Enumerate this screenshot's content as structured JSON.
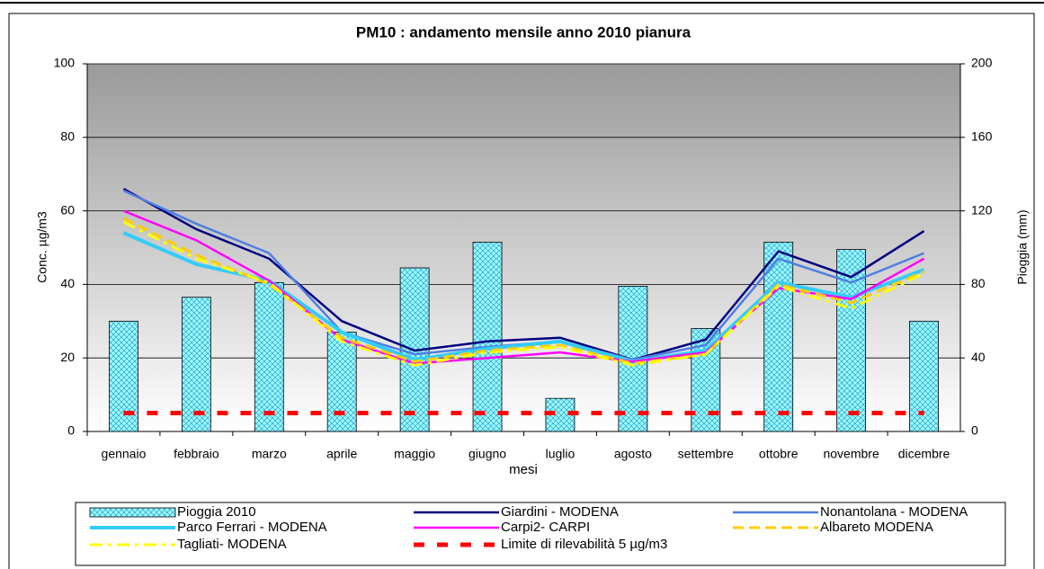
{
  "chart_data": {
    "type": "combo",
    "title": "PM10 : andamento mensile anno 2010 pianura",
    "y_label": "Conc. µg/m3",
    "y2_label": "Pioggia (mm)",
    "x_label": "mesi",
    "categories": [
      "gennaio",
      "febbraio",
      "marzo",
      "aprile",
      "maggio",
      "giugno",
      "luglio",
      "agosto",
      "settembre",
      "ottobre",
      "novembre",
      "dicembre"
    ],
    "ylim": [
      0,
      100
    ],
    "yticks": [
      0,
      20,
      40,
      60,
      80,
      100
    ],
    "y2lim": [
      0,
      200
    ],
    "y2ticks": [
      0,
      40,
      80,
      120,
      160,
      200
    ],
    "grid": true,
    "series": [
      {
        "name": "Pioggia 2010",
        "type": "bar",
        "axis": "y2",
        "color": "#99ffff",
        "values": [
          60,
          73,
          81,
          54,
          89,
          103,
          18,
          79,
          56,
          103,
          99,
          60
        ]
      },
      {
        "name": "Giardini  - MODENA",
        "type": "line",
        "line_style": "solid",
        "color": "#000080",
        "values": [
          66,
          55,
          47,
          30,
          22,
          24.5,
          25.5,
          19.5,
          25,
          49,
          42,
          54.5
        ]
      },
      {
        "name": "Nonantolana - MODENA",
        "type": "line",
        "line_style": "solid",
        "color": "#4f7fe0",
        "values": [
          65.5,
          56.5,
          48.5,
          27,
          21,
          23,
          24.5,
          19.5,
          23.5,
          47,
          40.5,
          48.5
        ]
      },
      {
        "name": "Parco Ferrari - MODENA",
        "type": "line",
        "line_style": "thick",
        "color": "#33ccff",
        "values": [
          54,
          45.5,
          41,
          27,
          19.5,
          22.5,
          24.5,
          19,
          22,
          40.5,
          36.5,
          44
        ]
      },
      {
        "name": "Carpi2- CARPI",
        "type": "line",
        "line_style": "solid",
        "color": "#ff00ff",
        "values": [
          60,
          52,
          41,
          25,
          18.5,
          20,
          21.5,
          19,
          21.5,
          39,
          36,
          47
        ]
      },
      {
        "name": "Albareto MODENA",
        "type": "line",
        "line_style": "dashed",
        "color": "#ffcc00",
        "values": [
          58,
          48,
          40,
          25.5,
          19,
          22,
          23.5,
          18.5,
          21,
          40,
          35,
          43.5
        ]
      },
      {
        "name": "Tagliati- MODENA",
        "type": "line",
        "line_style": "dashdot",
        "color": "#ffff00",
        "values": [
          57,
          47,
          40.5,
          24.5,
          18,
          21.5,
          23,
          18,
          21,
          39.5,
          33.5,
          43
        ]
      },
      {
        "name": "Limite di rilevabilità 5 µg/m3",
        "type": "line",
        "line_style": "bigdash",
        "color": "#ff0000",
        "values": [
          5,
          5,
          5,
          5,
          5,
          5,
          5,
          5,
          5,
          5,
          5,
          5
        ]
      }
    ]
  }
}
